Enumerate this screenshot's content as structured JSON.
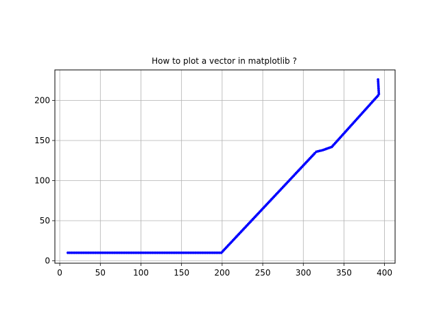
{
  "chart_data": {
    "type": "line",
    "title": "How to plot a vector in matplotlib ?",
    "xlabel": "",
    "ylabel": "",
    "xlim": [
      -6,
      413
    ],
    "ylim": [
      -3,
      238
    ],
    "xticks": [
      0,
      50,
      100,
      150,
      200,
      250,
      300,
      350,
      400
    ],
    "yticks": [
      0,
      50,
      100,
      150,
      200
    ],
    "grid": true,
    "series": [
      {
        "color": "#0000ff",
        "marker": "dot",
        "x": [
          10,
          199,
          314,
          316,
          324,
          335,
          392,
          393,
          392
        ],
        "y": [
          10,
          10,
          134,
          136,
          138,
          142,
          206,
          208,
          226
        ]
      }
    ]
  }
}
